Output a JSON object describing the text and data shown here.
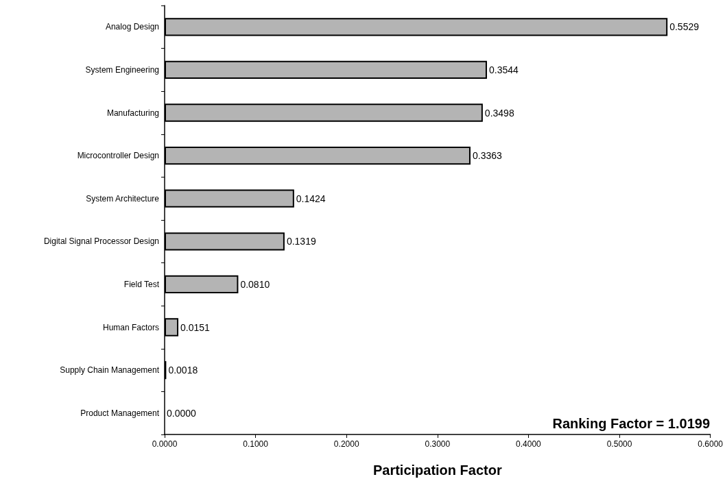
{
  "chart_data": {
    "type": "bar",
    "orientation": "horizontal",
    "xlabel": "Participation Factor",
    "categories": [
      "Analog Design",
      "System Engineering",
      "Manufacturing",
      "Microcontroller Design",
      "System Architecture",
      "Digital Signal Processor Design",
      "Field Test",
      "Human Factors",
      "Supply Chain Management",
      "Product Management"
    ],
    "values": [
      0.5529,
      0.3544,
      0.3498,
      0.3363,
      0.1424,
      0.1319,
      0.081,
      0.0151,
      0.0018,
      0
    ],
    "value_labels": [
      "0.5529",
      "0.3544",
      "0.3498",
      "0.3363",
      "0.1424",
      "0.1319",
      "0.0810",
      "0.0151",
      "0.0018",
      "0.0000"
    ],
    "color": "#b4b4b4",
    "xlim": [
      0,
      0.6
    ],
    "xticks": [
      {
        "value": 0,
        "label": "0.0000"
      },
      {
        "value": 0.1,
        "label": "0.1000"
      },
      {
        "value": 0.2,
        "label": "0.2000"
      },
      {
        "value": 0.3,
        "label": "0.3000"
      },
      {
        "value": 0.4,
        "label": "0.4000"
      },
      {
        "value": 0.5,
        "label": "0.5000"
      },
      {
        "value": 0.6,
        "label": "0.6000"
      }
    ],
    "annotations": [
      "Ranking Factor = 1.0199"
    ],
    "grid": false
  }
}
